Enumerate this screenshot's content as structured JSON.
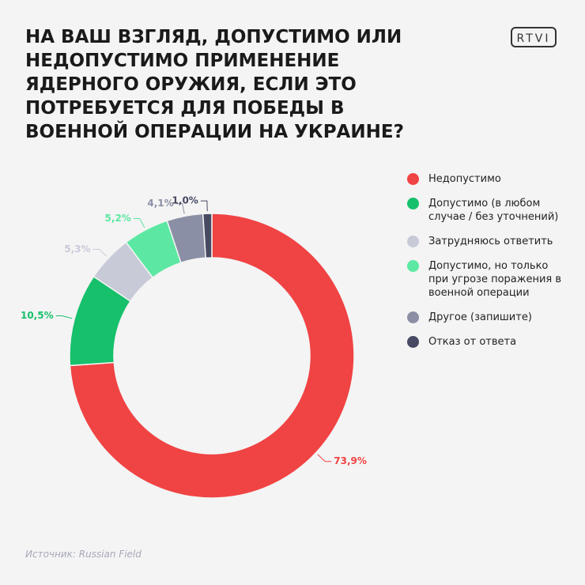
{
  "header": {
    "title": "НА ВАШ ВЗГЛЯД, ДОПУСТИМО ИЛИ НЕДОПУСТИМО ПРИМЕНЕНИЕ ЯДЕРНОГО ОРУЖИЯ, ЕСЛИ ЭТО ПОТРЕБУЕТСЯ ДЛЯ ПОБЕДЫ В ВОЕННОЙ ОПЕРАЦИИ НА УКРАИНЕ?",
    "logo": "RTVI"
  },
  "chart_data": {
    "type": "donut",
    "series": [
      {
        "name": "Недопустимо",
        "color": "#f04343",
        "values": [
          73.9
        ],
        "value_labels": [
          "73,9%"
        ]
      },
      {
        "name": "Допустимо (в любом случае / без уточнений)",
        "color": "#17c06b",
        "values": [
          10.5
        ],
        "value_labels": [
          "10,5%"
        ]
      },
      {
        "name": "Затрудняюсь ответить",
        "color": "#c8cad8",
        "values": [
          5.3
        ],
        "value_labels": [
          "5,3%"
        ]
      },
      {
        "name": "Допустимо, но только при угрозе поражения в военной операции",
        "color": "#5ce8a2",
        "values": [
          5.2
        ],
        "value_labels": [
          "5,2%"
        ]
      },
      {
        "name": "Другое (запишите)",
        "color": "#8b8fa5",
        "values": [
          4.1
        ],
        "value_labels": [
          "4,1%"
        ]
      },
      {
        "name": "Отказ от ответа",
        "color": "#474a62",
        "values": [
          1.0
        ],
        "value_labels": [
          "1,0%"
        ]
      }
    ]
  },
  "footer": {
    "source": "Источник: Russian Field"
  }
}
